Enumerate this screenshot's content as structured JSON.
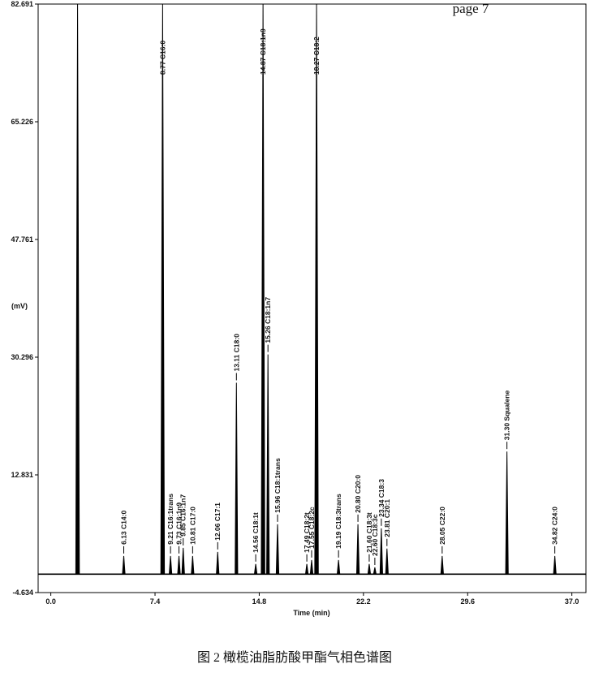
{
  "chart_data": {
    "type": "chromatogram",
    "header": "page 7",
    "y_label": "(mV)",
    "x_label": "Time (min)",
    "caption": "图 2 橄榄油脂肪酸甲酯气相色谱图",
    "xlim": [
      -0.9,
      38
    ],
    "ylim": [
      -4.634,
      82.691
    ],
    "xticks": [
      {
        "value": 0,
        "label": "0.0"
      },
      7.4,
      14.8,
      22.2,
      29.6,
      {
        "value": 37,
        "label": "37.0"
      }
    ],
    "yticks": [
      -4.634,
      12.831,
      30.296,
      47.761,
      65.226,
      82.691
    ],
    "baseline": -1.9,
    "color": "#000000",
    "peaks": {
      "x": [
        1.9,
        5.18,
        7.94,
        8.5,
        9.1,
        9.4,
        10.07,
        11.85,
        13.18,
        14.55,
        15.07,
        15.42,
        16.1,
        18.18,
        18.52,
        18.87,
        20.43,
        21.81,
        22.61,
        23.01,
        23.47,
        23.87,
        27.79,
        32.39,
        35.79
      ],
      "values": [
        82.691,
        0.8,
        82.691,
        0.8,
        0.8,
        2.0,
        0.8,
        1.4,
        26.5,
        -0.4,
        82.691,
        30.7,
        5.5,
        -0.4,
        0.2,
        82.691,
        0.2,
        5.5,
        -0.4,
        -0.9,
        4.9,
        1.9,
        0.8,
        16.3,
        0.8
      ],
      "labels": [
        null,
        "6.13 C14:0",
        "8.77 C16:0",
        "9.21 C16:1trans",
        "9.73 C16:1n9",
        "9.85 C16:1n7",
        "10.81 C17:0",
        "12.06 C17:1",
        "13.11 C18:0",
        "14.56 C18:1t",
        "14.87 C18:1n9",
        "15.26 C18:1n7",
        "15.96 C18:1trans",
        "17.49 C18:2t",
        "17.55 C18:2c",
        "18.27 C18:2",
        "19.19 C18:3trans",
        "20.80 C20:0",
        "21.60 C18:3t",
        "22.60 C18:3c",
        "23.34 C18:3",
        "23.81 C20:1",
        "28.05 C22:0",
        "31.30 Squalene",
        "34.82 C24:0"
      ]
    }
  }
}
